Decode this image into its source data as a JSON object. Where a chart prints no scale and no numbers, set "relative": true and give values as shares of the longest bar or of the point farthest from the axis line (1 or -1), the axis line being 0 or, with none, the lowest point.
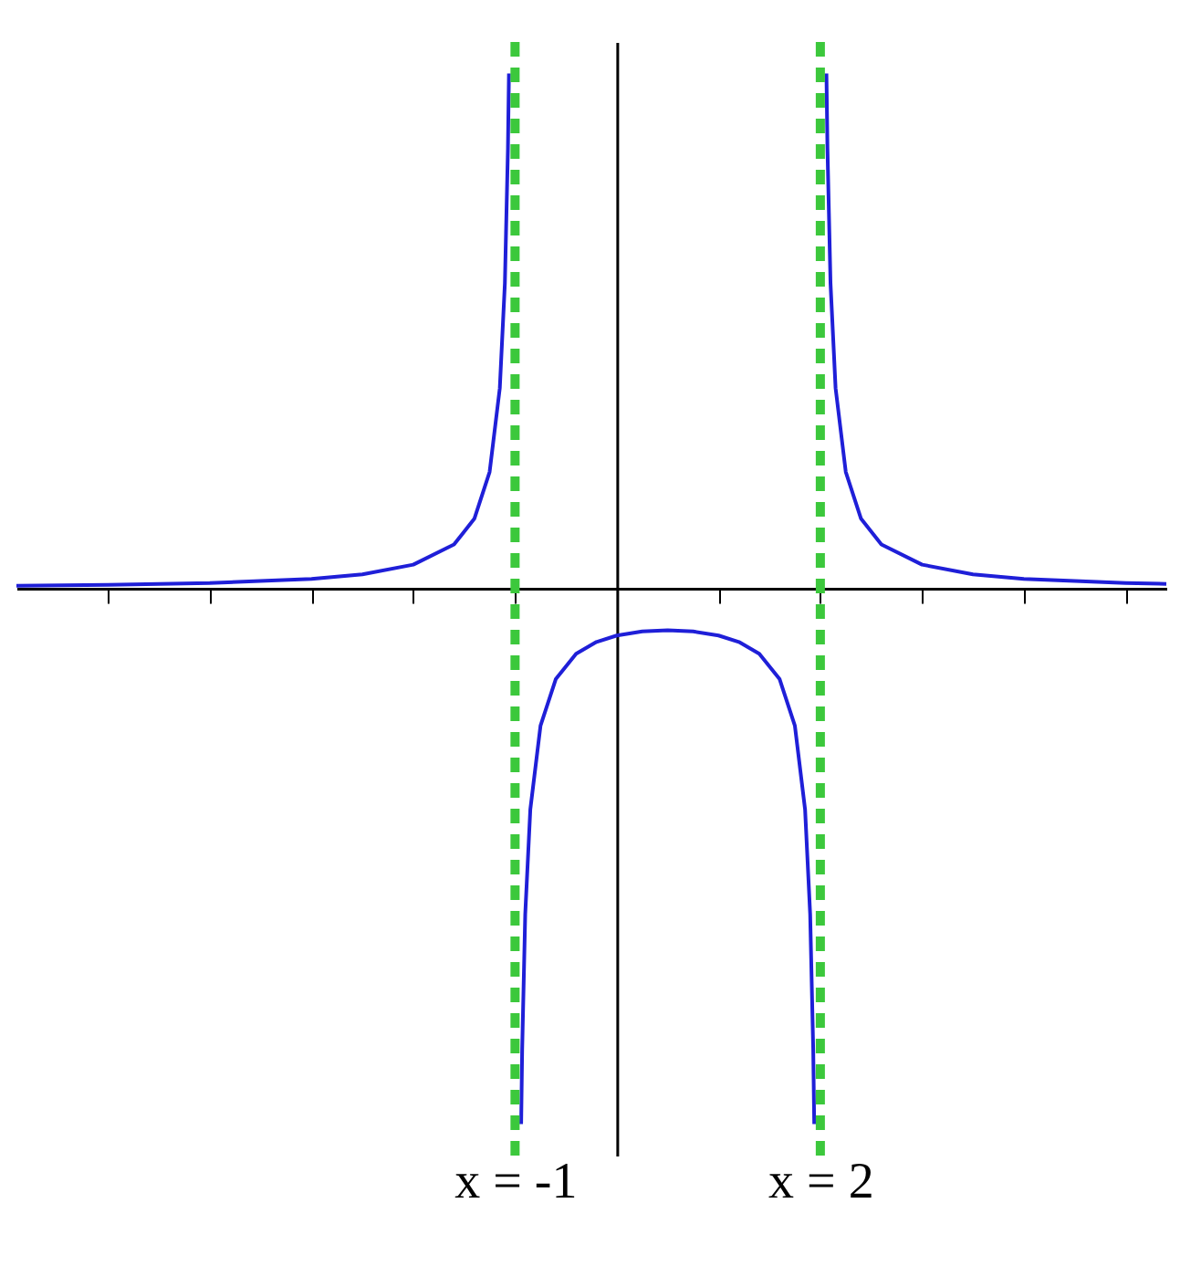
{
  "chart_data": {
    "type": "line",
    "relative": true,
    "xlim": [
      -5.9,
      5.4
    ],
    "xticks": [
      {
        "value": -5,
        "label": null
      },
      {
        "value": -4,
        "label": null
      },
      {
        "value": -3,
        "label": null
      },
      {
        "value": -2,
        "label": null
      },
      {
        "value": -1,
        "label": "x = -1"
      },
      {
        "value": 1,
        "label": null
      },
      {
        "value": 2,
        "label": "x = 2"
      },
      {
        "value": 3,
        "label": null
      },
      {
        "value": 4,
        "label": null
      },
      {
        "value": 5,
        "label": null
      }
    ],
    "series": [
      {
        "color": "#1f1fd8",
        "x": [
          -5.9,
          -5,
          -4,
          -3,
          -2.5,
          -2,
          -1.6,
          -1.4,
          -1.25,
          -1.15,
          -1.1,
          -1.07,
          -1.06
        ],
        "values": [
          0.0046,
          0.0063,
          0.0098,
          0.0176,
          0.0261,
          0.0441,
          0.0817,
          0.1297,
          0.2171,
          0.3733,
          0.5691,
          0.8208,
          0.9608
        ]
      },
      {
        "color": "#1f1fd8",
        "x": [
          -0.94,
          -0.93,
          -0.9,
          -0.85,
          -0.75,
          -0.6,
          -0.4,
          -0.2,
          0,
          0.25,
          0.5,
          0.75,
          1,
          1.2,
          1.4,
          1.6,
          1.75,
          1.85,
          1.9,
          1.93,
          1.94
        ],
        "values": [
          -1,
          -0.8601,
          -0.6082,
          -0.4126,
          -0.2567,
          -0.1697,
          -0.1224,
          -0.1002,
          -0.0882,
          -0.0806,
          -0.0783,
          -0.0806,
          -0.0882,
          -0.1002,
          -0.1224,
          -0.1697,
          -0.2567,
          -0.4126,
          -0.6082,
          -0.8601,
          -1
        ]
      },
      {
        "color": "#1f1fd8",
        "x": [
          2.06,
          2.07,
          2.1,
          2.15,
          2.25,
          2.4,
          2.6,
          3,
          3.5,
          4,
          5,
          5.4
        ],
        "values": [
          0.9608,
          0.8208,
          0.5691,
          0.3733,
          0.2171,
          0.1297,
          0.0817,
          0.0441,
          0.0261,
          0.0176,
          0.0098,
          0.0081
        ]
      }
    ],
    "ref_lines": [
      {
        "axis": "x",
        "value": -1,
        "color": "#3cc83c",
        "line_style": "dashed"
      },
      {
        "axis": "x",
        "value": 2,
        "color": "#3cc83c",
        "line_style": "dashed"
      }
    ],
    "grid": false,
    "legend": false
  }
}
